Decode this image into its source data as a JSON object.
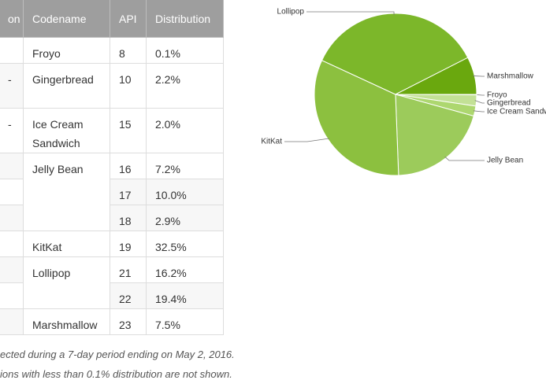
{
  "table": {
    "header": [
      "on",
      "Codename",
      "API",
      "Distribution"
    ],
    "rows": [
      [
        null,
        "Froyo",
        "8",
        "0.1%"
      ],
      [
        "-",
        "Gingerbread",
        "10",
        "2.2%"
      ],
      [
        "-",
        "Ice Cream Sandwich",
        "15",
        "2.0%"
      ],
      [
        null,
        "Jelly Bean",
        "16",
        "7.2%"
      ],
      [
        null,
        null,
        "17",
        "10.0%"
      ],
      [
        null,
        null,
        "18",
        "2.9%"
      ],
      [
        null,
        "KitKat",
        "19",
        "32.5%"
      ],
      [
        null,
        "Lollipop",
        "21",
        "16.2%"
      ],
      [
        null,
        null,
        "22",
        "19.4%"
      ],
      [
        null,
        "Marshmallow",
        "23",
        "7.5%"
      ]
    ]
  },
  "notes": [
    "ected during a 7-day period ending on May 2, 2016.",
    "ions with less than 0.1% distribution are not shown."
  ],
  "chart_data": {
    "type": "pie",
    "categories": [
      "Froyo",
      "Gingerbread",
      "Ice Cream Sandw",
      "Jelly Bean",
      "KitKat",
      "Lollipop",
      "Marshmallow"
    ],
    "values": [
      0.1,
      2.2,
      2.0,
      20.1,
      32.5,
      35.6,
      7.5
    ],
    "colors": [
      "#b5d879",
      "#c3e196",
      "#add76f",
      "#9ccb5b",
      "#8cc03f",
      "#7cb72a",
      "#6aa80e"
    ]
  }
}
